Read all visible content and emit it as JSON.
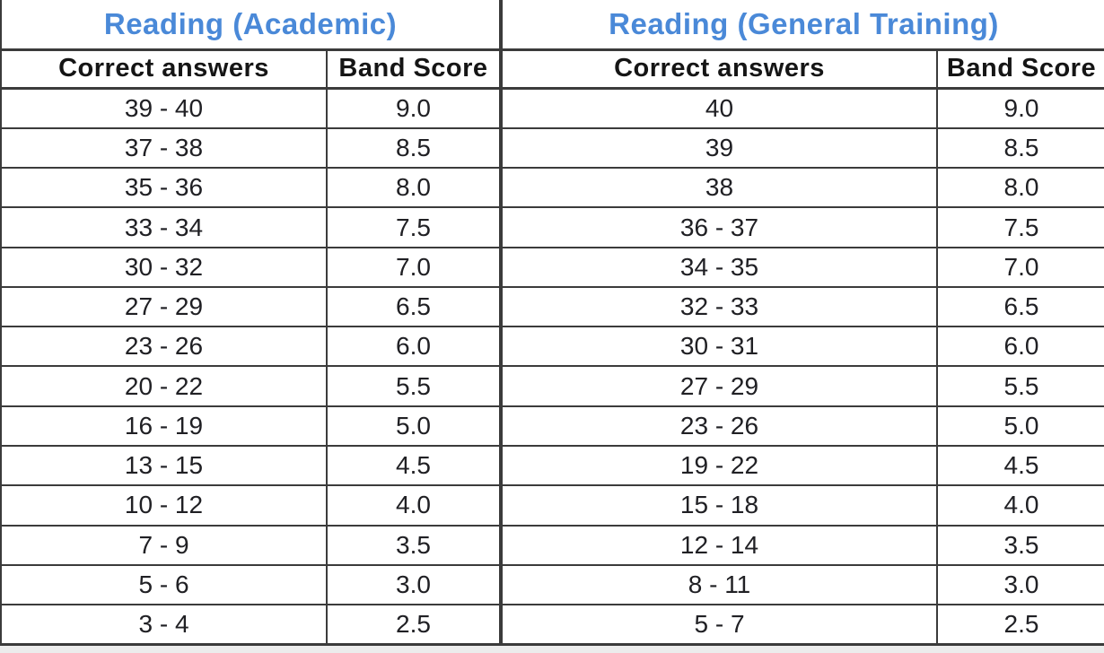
{
  "page": {
    "background_color": "#ececec",
    "table_background": "#ffffff",
    "border_color": "#3b3b3b",
    "title_color": "#4a89d8",
    "header_text_color": "#151515",
    "data_text_color": "#202024"
  },
  "tables": [
    {
      "title": "Reading (Academic)",
      "columns": [
        "Correct answers",
        "Band Score"
      ],
      "rows": [
        [
          "39 - 40",
          "9.0"
        ],
        [
          "37 - 38",
          "8.5"
        ],
        [
          "35 - 36",
          "8.0"
        ],
        [
          "33 - 34",
          "7.5"
        ],
        [
          "30 - 32",
          "7.0"
        ],
        [
          "27 - 29",
          "6.5"
        ],
        [
          "23 - 26",
          "6.0"
        ],
        [
          "20 - 22",
          "5.5"
        ],
        [
          "16 - 19",
          "5.0"
        ],
        [
          "13 - 15",
          "4.5"
        ],
        [
          "10 - 12",
          "4.0"
        ],
        [
          "7 - 9",
          "3.5"
        ],
        [
          "5 - 6",
          "3.0"
        ],
        [
          "3 - 4",
          "2.5"
        ]
      ]
    },
    {
      "title": "Reading (General Training)",
      "columns": [
        "Correct answers",
        "Band Score"
      ],
      "rows": [
        [
          "40",
          "9.0"
        ],
        [
          "39",
          "8.5"
        ],
        [
          "38",
          "8.0"
        ],
        [
          "36 - 37",
          "7.5"
        ],
        [
          "34 - 35",
          "7.0"
        ],
        [
          "32 - 33",
          "6.5"
        ],
        [
          "30 - 31",
          "6.0"
        ],
        [
          "27 - 29",
          "5.5"
        ],
        [
          "23 - 26",
          "5.0"
        ],
        [
          "19 - 22",
          "4.5"
        ],
        [
          "15 - 18",
          "4.0"
        ],
        [
          "12 - 14",
          "3.5"
        ],
        [
          "8 - 11",
          "3.0"
        ],
        [
          "5 - 7",
          "2.5"
        ]
      ]
    }
  ]
}
